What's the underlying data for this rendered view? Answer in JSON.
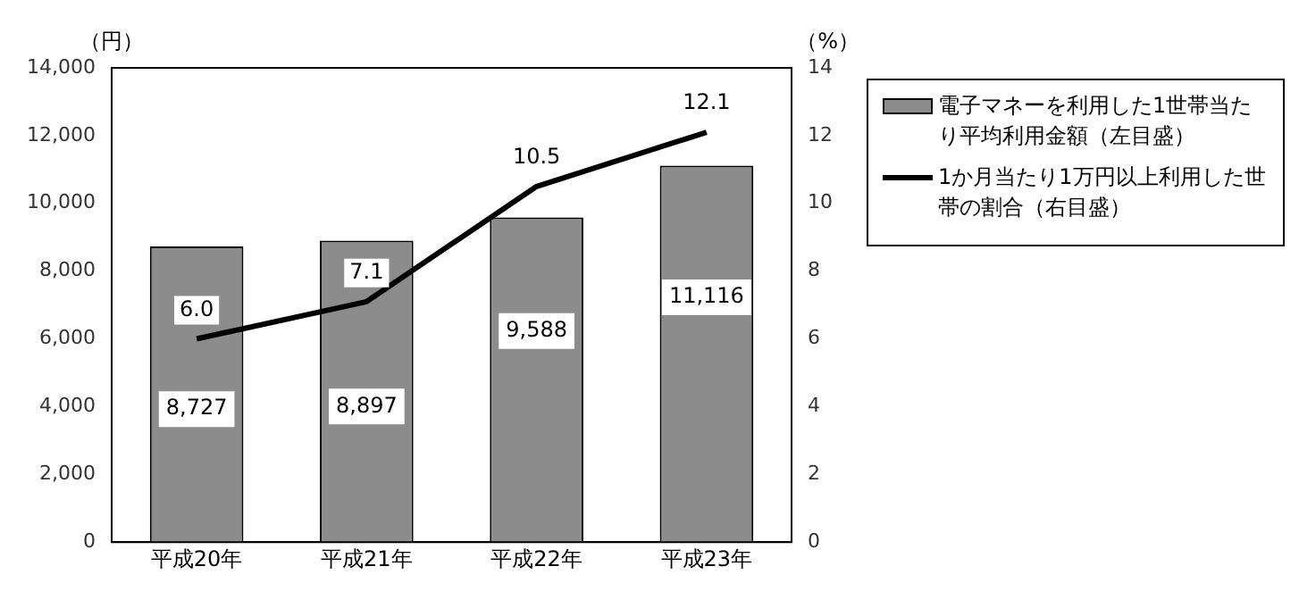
{
  "chart_data": {
    "type": "bar",
    "categories": [
      "平成20年",
      "平成21年",
      "平成22年",
      "平成23年"
    ],
    "series": [
      {
        "name": "電子マネーを利用した1世帯当たり平均利用金額（左目盛）",
        "color": "#8c8c8c",
        "values": [
          8727,
          8897,
          9588,
          11116
        ]
      },
      {
        "name": "1か月当たり1万円以上利用した世帯の割合（右目盛）",
        "type": "line",
        "axis": "y2",
        "color": "#000000",
        "values": [
          6.0,
          7.1,
          10.5,
          12.1
        ],
        "value_labels": [
          "6.0",
          "7.1",
          "10.5",
          "12.1"
        ]
      }
    ],
    "ylabel": "（円）",
    "y2label": "（%）",
    "ylim": [
      0,
      14000
    ],
    "yticks": [
      {
        "value": 0,
        "label": "0"
      },
      {
        "value": 2000,
        "label": "2,000"
      },
      {
        "value": 4000,
        "label": "4,000"
      },
      {
        "value": 6000,
        "label": "6,000"
      },
      {
        "value": 8000,
        "label": "8,000"
      },
      {
        "value": 10000,
        "label": "10,000"
      },
      {
        "value": 12000,
        "label": "12,000"
      },
      {
        "value": 14000,
        "label": "14,000"
      }
    ],
    "y2lim": [
      0,
      14
    ],
    "y2ticks": [
      0,
      2,
      4,
      6,
      8,
      10,
      12,
      14
    ],
    "value_labels": [
      "8,727",
      "8,897",
      "9,588",
      "11,116"
    ],
    "grid": false,
    "legend": "right",
    "marker": "none",
    "line_style": "solid"
  }
}
